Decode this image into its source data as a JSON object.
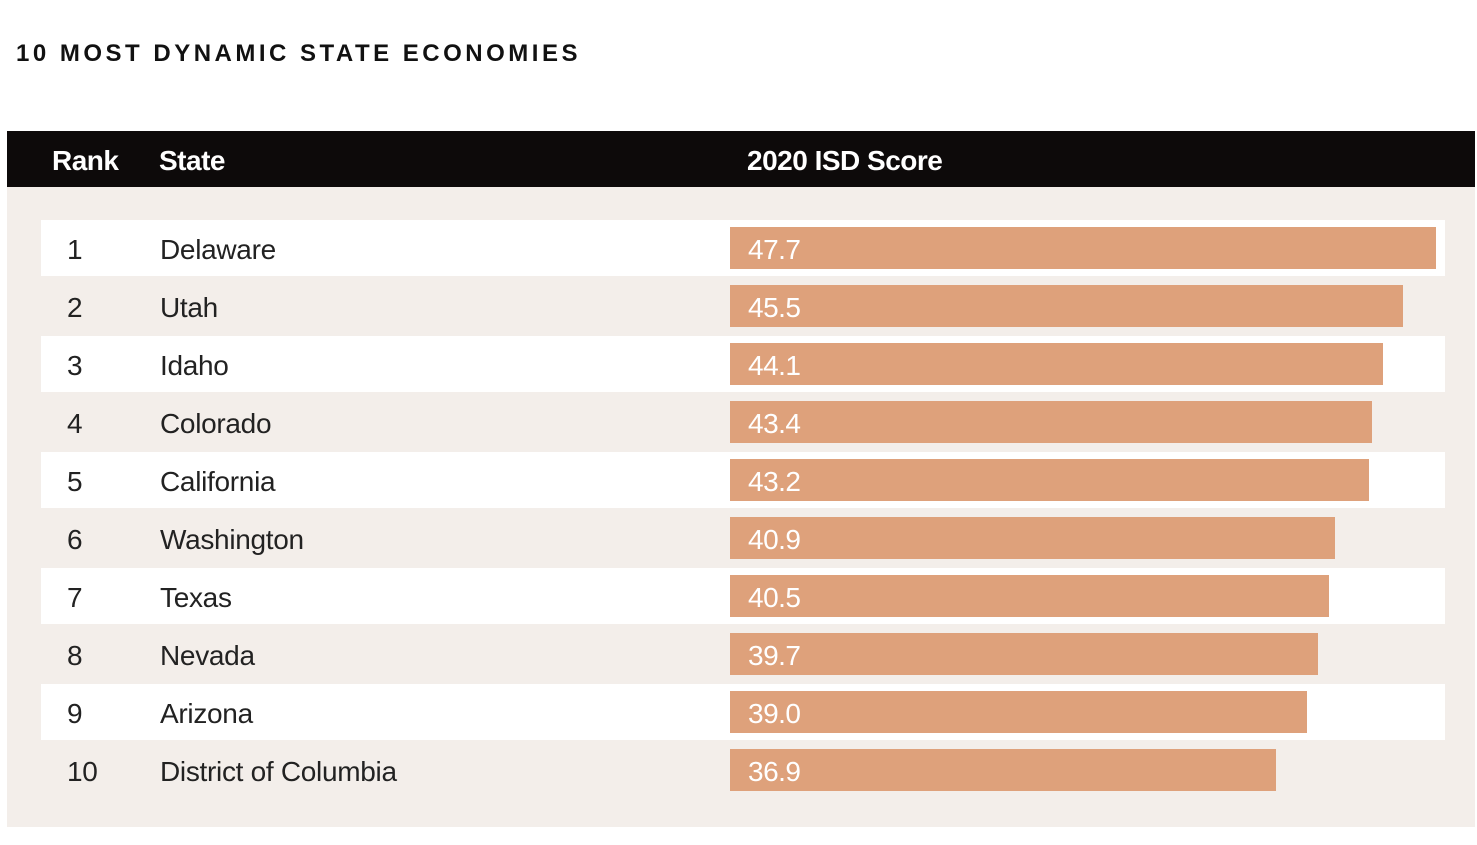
{
  "title": "10 MOST DYNAMIC STATE ECONOMIES",
  "columns": {
    "rank": "Rank",
    "state": "State",
    "score": "2020 ISD Score"
  },
  "colors": {
    "bar": "#dea17b",
    "header": "#0d0a0a",
    "panel": "#f3eeea"
  },
  "chart_data": {
    "type": "bar",
    "orientation": "horizontal",
    "title": "10 MOST DYNAMIC STATE ECONOMIES",
    "categories": [
      "Delaware",
      "Utah",
      "Idaho",
      "Colorado",
      "California",
      "Washington",
      "Texas",
      "Nevada",
      "Arizona",
      "District of Columbia"
    ],
    "ranks": [
      "1",
      "2",
      "3",
      "4",
      "5",
      "6",
      "7",
      "8",
      "9",
      "10"
    ],
    "values": [
      47.7,
      45.5,
      44.1,
      43.4,
      43.2,
      40.9,
      40.5,
      39.7,
      39.0,
      36.9
    ],
    "value_labels": [
      "47.7",
      "45.5",
      "44.1",
      "43.4",
      "43.2",
      "40.9",
      "40.5",
      "39.7",
      "39.0",
      "36.9"
    ],
    "xlim": [
      0,
      47.7
    ],
    "grid": false,
    "legend": "none"
  }
}
